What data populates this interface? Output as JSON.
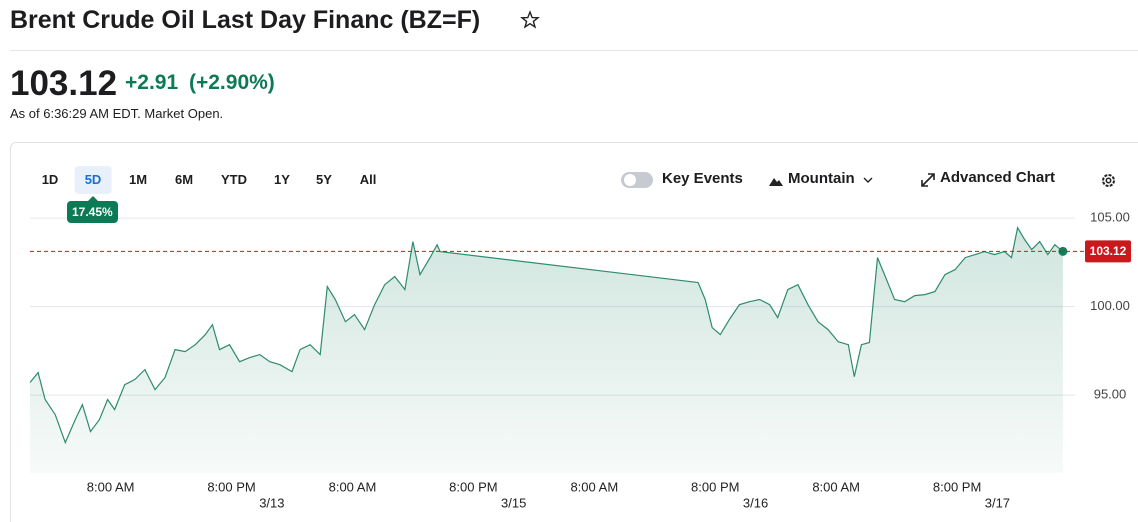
{
  "header": {
    "title": "Brent Crude Oil Last Day Financ (BZ=F)"
  },
  "quote": {
    "price": 103.12,
    "change": "+2.91",
    "change_percent": "(+2.90%)",
    "as_of": "As of 6:36:29 AM EDT. Market Open."
  },
  "toolbar": {
    "ranges": [
      "1D",
      "5D",
      "1M",
      "6M",
      "YTD",
      "1Y",
      "5Y",
      "All"
    ],
    "selected": 1,
    "range_change": "17.45%",
    "key_events": "Key Events",
    "chart_type": "Mountain",
    "advanced": "Advanced Chart"
  },
  "chart_data": {
    "type": "area",
    "color": "#2e8b6e",
    "grid": true,
    "x": [
      0,
      0.8,
      1.5,
      2.5,
      3.5,
      4.5,
      5.2,
      6.0,
      6.9,
      7.7,
      8.4,
      9.4,
      10.4,
      11.4,
      12.4,
      13.4,
      14.4,
      15.4,
      16.4,
      17.4,
      18.1,
      18.8,
      19.8,
      20.8,
      21.8,
      22.8,
      23.8,
      24.8,
      26.0,
      26.8,
      27.8,
      28.8,
      29.5,
      30.3,
      31.3,
      32.2,
      33.2,
      34.2,
      35.2,
      36.2,
      37.2,
      38.0,
      38.7,
      39.7,
      40.4,
      40.7,
      66.3,
      67.0,
      67.7,
      68.5,
      69.4,
      70.4,
      71.4,
      72.4,
      73.4,
      74.2,
      75.2,
      76.2,
      77.2,
      78.2,
      79.2,
      80.2,
      81.2,
      81.8,
      82.5,
      83.3,
      84.1,
      84.8,
      85.8,
      86.8,
      87.8,
      88.8,
      89.8,
      90.8,
      91.8,
      92.8,
      93.8,
      94.7,
      95.7,
      96.7,
      97.4,
      98.0,
      98.7,
      99.4,
      100.2,
      101.0,
      101.7,
      102.5
    ],
    "values": [
      95.71,
      96.27,
      94.75,
      93.9,
      92.32,
      93.62,
      94.46,
      92.94,
      93.62,
      94.75,
      94.18,
      95.59,
      95.88,
      96.44,
      95.31,
      95.99,
      97.57,
      97.46,
      97.85,
      98.42,
      98.98,
      97.57,
      97.85,
      96.89,
      97.12,
      97.29,
      96.89,
      96.72,
      96.33,
      97.57,
      97.85,
      97.29,
      101.13,
      100.4,
      99.15,
      99.55,
      98.7,
      100.11,
      101.24,
      101.7,
      100.96,
      103.67,
      101.81,
      102.77,
      103.5,
      103.11,
      101.36,
      100.4,
      98.81,
      98.42,
      99.27,
      100.11,
      100.28,
      100.4,
      100.11,
      99.38,
      100.96,
      101.24,
      100.11,
      99.15,
      98.7,
      98.02,
      97.85,
      96.04,
      97.85,
      97.97,
      102.77,
      101.81,
      100.4,
      100.28,
      100.62,
      100.68,
      100.85,
      101.81,
      102.09,
      102.77,
      102.94,
      103.11,
      102.94,
      103.11,
      102.77,
      104.46,
      103.79,
      103.22,
      103.67,
      102.94,
      103.5,
      103.12
    ],
    "xlim": [
      0,
      103.7
    ],
    "ylim": [
      90.6,
      106
    ],
    "xticks": [
      {
        "value": 8,
        "label": "8:00 AM"
      },
      {
        "value": 20,
        "label": "8:00 PM"
      },
      {
        "value": 32,
        "label": "8:00 AM"
      },
      {
        "value": 44,
        "label": "8:00 PM"
      },
      {
        "value": 56,
        "label": "8:00 AM"
      },
      {
        "value": 68,
        "label": "8:00 PM"
      },
      {
        "value": 80,
        "label": "8:00 AM"
      },
      {
        "value": 92,
        "label": "8:00 PM"
      }
    ],
    "date_ticks": [
      {
        "value": 24,
        "label": "3/13"
      },
      {
        "value": 48,
        "label": "3/15"
      },
      {
        "value": 72,
        "label": "3/16"
      },
      {
        "value": 96,
        "label": "3/17"
      }
    ],
    "yticks": [
      {
        "value": 95,
        "label": "95.00"
      },
      {
        "value": 100,
        "label": "100.00"
      },
      {
        "value": 105,
        "label": "105.00"
      }
    ]
  }
}
